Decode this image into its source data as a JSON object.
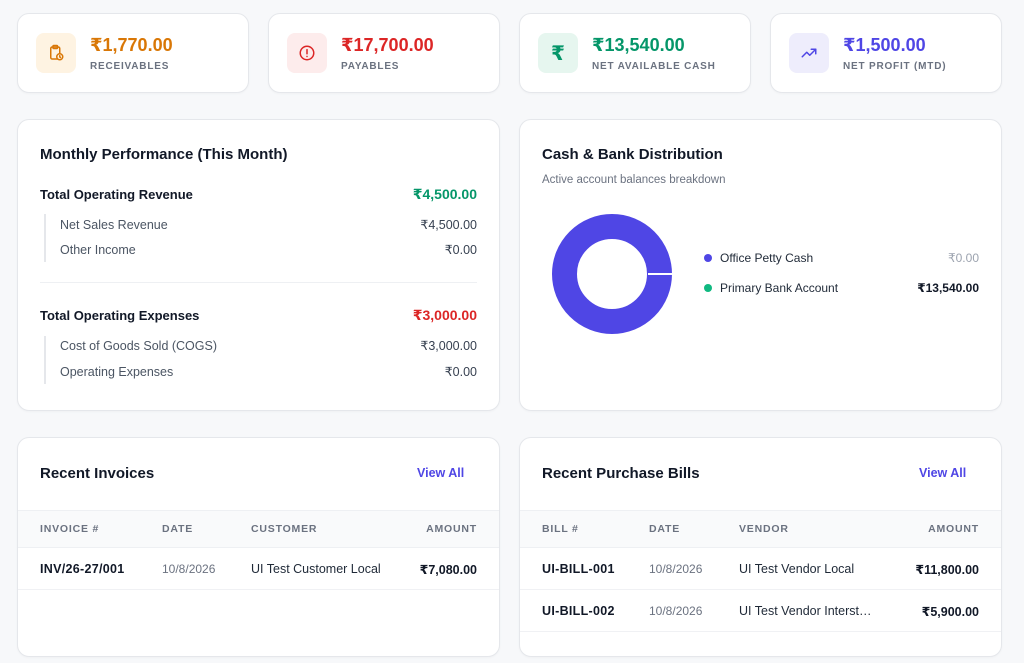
{
  "kpis": [
    {
      "value": "₹1,770.00",
      "label": "RECEIVABLES",
      "color": "#d97706",
      "bg": "#fef3e2",
      "icon": "clipboard-clock-icon"
    },
    {
      "value": "₹17,700.00",
      "label": "PAYABLES",
      "color": "#dc2626",
      "bg": "#fdecec",
      "icon": "alert-circle-icon"
    },
    {
      "value": "₹13,540.00",
      "label": "NET AVAILABLE CASH",
      "color": "#059669",
      "bg": "#e6f6ef",
      "icon": "rupee-icon"
    },
    {
      "value": "₹1,500.00",
      "label": "NET PROFIT (MTD)",
      "color": "#4f46e5",
      "bg": "#eeedfc",
      "icon": "trending-up-icon"
    }
  ],
  "performance": {
    "title": "Monthly Performance (This Month)",
    "revenue": {
      "label": "Total Operating Revenue",
      "value": "₹4,500.00",
      "color": "#059669",
      "items": [
        {
          "label": "Net Sales Revenue",
          "value": "₹4,500.00"
        },
        {
          "label": "Other Income",
          "value": "₹0.00"
        }
      ]
    },
    "expenses": {
      "label": "Total Operating Expenses",
      "value": "₹3,000.00",
      "color": "#dc2626",
      "items": [
        {
          "label": "Cost of Goods Sold (COGS)",
          "value": "₹3,000.00"
        },
        {
          "label": "Operating Expenses",
          "value": "₹0.00"
        }
      ]
    }
  },
  "distribution": {
    "title": "Cash & Bank Distribution",
    "subtitle": "Active account balances breakdown",
    "accounts": [
      {
        "name": "Office Petty Cash",
        "value": "₹0.00",
        "color": "#4f46e5",
        "muted": true
      },
      {
        "name": "Primary Bank Account",
        "value": "₹13,540.00",
        "color": "#10b981",
        "muted": false
      }
    ],
    "donut_color": "#4f46e5"
  },
  "invoices": {
    "title": "Recent Invoices",
    "view_all": "View All",
    "columns": [
      "INVOICE #",
      "DATE",
      "CUSTOMER",
      "AMOUNT"
    ],
    "rows": [
      {
        "code": "INV/26-27/001",
        "date": "10/8/2026",
        "party": "UI Test Customer Local",
        "amount": "₹7,080.00"
      }
    ]
  },
  "bills": {
    "title": "Recent Purchase Bills",
    "view_all": "View All",
    "columns": [
      "BILL #",
      "DATE",
      "VENDOR",
      "AMOUNT"
    ],
    "rows": [
      {
        "code": "UI-BILL-001",
        "date": "10/8/2026",
        "party": "UI Test Vendor Local",
        "amount": "₹11,800.00"
      },
      {
        "code": "UI-BILL-002",
        "date": "10/8/2026",
        "party": "UI Test Vendor Interst…",
        "amount": "₹5,900.00"
      }
    ]
  }
}
